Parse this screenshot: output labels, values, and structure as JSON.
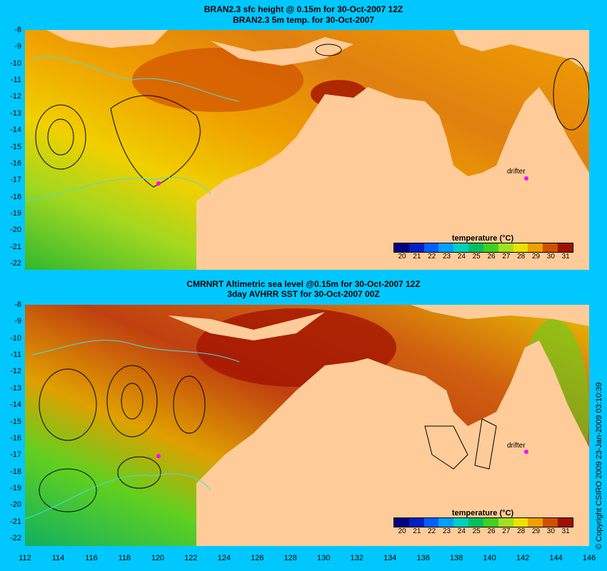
{
  "panels": [
    {
      "title_line1": "BRAN2.3 sfc height @ 0.15m for 30-Oct-2007 12Z",
      "title_line2": "BRAN2.3 5m temp. for 30-Oct-2007",
      "drifter_label": "drifter"
    },
    {
      "title_line1": "CMRNRT Altimetric sea level  @0.15m  for 30-Oct-2007 12Z",
      "title_line2": "3day AVHRR SST for 30-Oct-2007 00Z",
      "drifter_label": "drifter"
    }
  ],
  "legend": {
    "title": "temperature (°C)",
    "ticks": [
      "20",
      "21",
      "22",
      "23",
      "24",
      "25",
      "26",
      "27",
      "28",
      "29",
      "30",
      "31"
    ],
    "colors": [
      "#000080",
      "#0020c0",
      "#0060ff",
      "#00a0ff",
      "#00d0c0",
      "#00c060",
      "#40d020",
      "#a0e020",
      "#f0e000",
      "#f0a000",
      "#d05000",
      "#a01000"
    ]
  },
  "y_axis_labels": [
    "-8",
    "-9",
    "-10",
    "-11",
    "-12",
    "-13",
    "-14",
    "-15",
    "-16",
    "-17",
    "-18",
    "-19",
    "-20",
    "-21",
    "-22"
  ],
  "x_axis_labels": [
    "112",
    "114",
    "116",
    "118",
    "120",
    "122",
    "124",
    "126",
    "128",
    "130",
    "132",
    "134",
    "136",
    "138",
    "140",
    "142",
    "144",
    "146"
  ],
  "copyright": "© Copyright CSIRO 2009   23-Jan-2009 03:10:39",
  "colors": {
    "background": "#00c8ff",
    "land": "#ffcc99",
    "coast_contour": "#40e0e0"
  }
}
